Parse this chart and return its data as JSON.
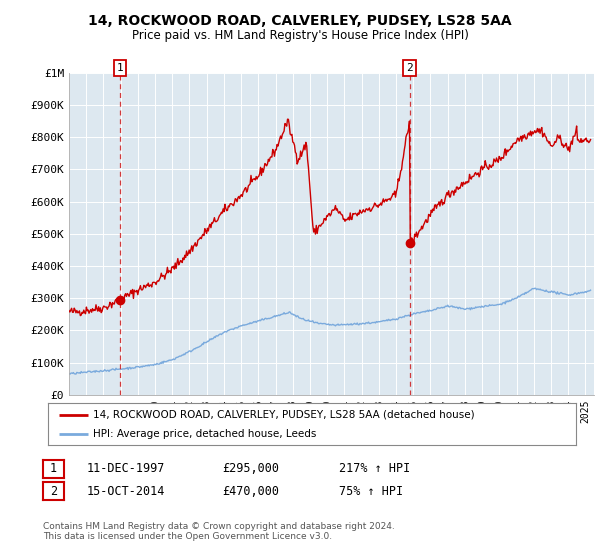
{
  "title": "14, ROCKWOOD ROAD, CALVERLEY, PUDSEY, LS28 5AA",
  "subtitle": "Price paid vs. HM Land Registry's House Price Index (HPI)",
  "legend_line1": "14, ROCKWOOD ROAD, CALVERLEY, PUDSEY, LS28 5AA (detached house)",
  "legend_line2": "HPI: Average price, detached house, Leeds",
  "sale1_date": 1997.95,
  "sale1_price": 295000,
  "sale1_label": "1",
  "sale1_text": "11-DEC-1997",
  "sale1_price_str": "£295,000",
  "sale1_pct": "217% ↑ HPI",
  "sale2_date": 2014.79,
  "sale2_price": 470000,
  "sale2_label": "2",
  "sale2_text": "15-OCT-2014",
  "sale2_price_str": "£470,000",
  "sale2_pct": "75% ↑ HPI",
  "ylim": [
    0,
    1000000
  ],
  "xlim": [
    1995.0,
    2025.5
  ],
  "ylabel_ticks": [
    0,
    100000,
    200000,
    300000,
    400000,
    500000,
    600000,
    700000,
    800000,
    900000,
    1000000
  ],
  "ylabel_labels": [
    "£0",
    "£100K",
    "£200K",
    "£300K",
    "£400K",
    "£500K",
    "£600K",
    "£700K",
    "£800K",
    "£900K",
    "£1M"
  ],
  "red_color": "#cc0000",
  "blue_color": "#7aaadd",
  "bg_color": "#dde8f0",
  "footnote": "Contains HM Land Registry data © Crown copyright and database right 2024.\nThis data is licensed under the Open Government Licence v3.0."
}
